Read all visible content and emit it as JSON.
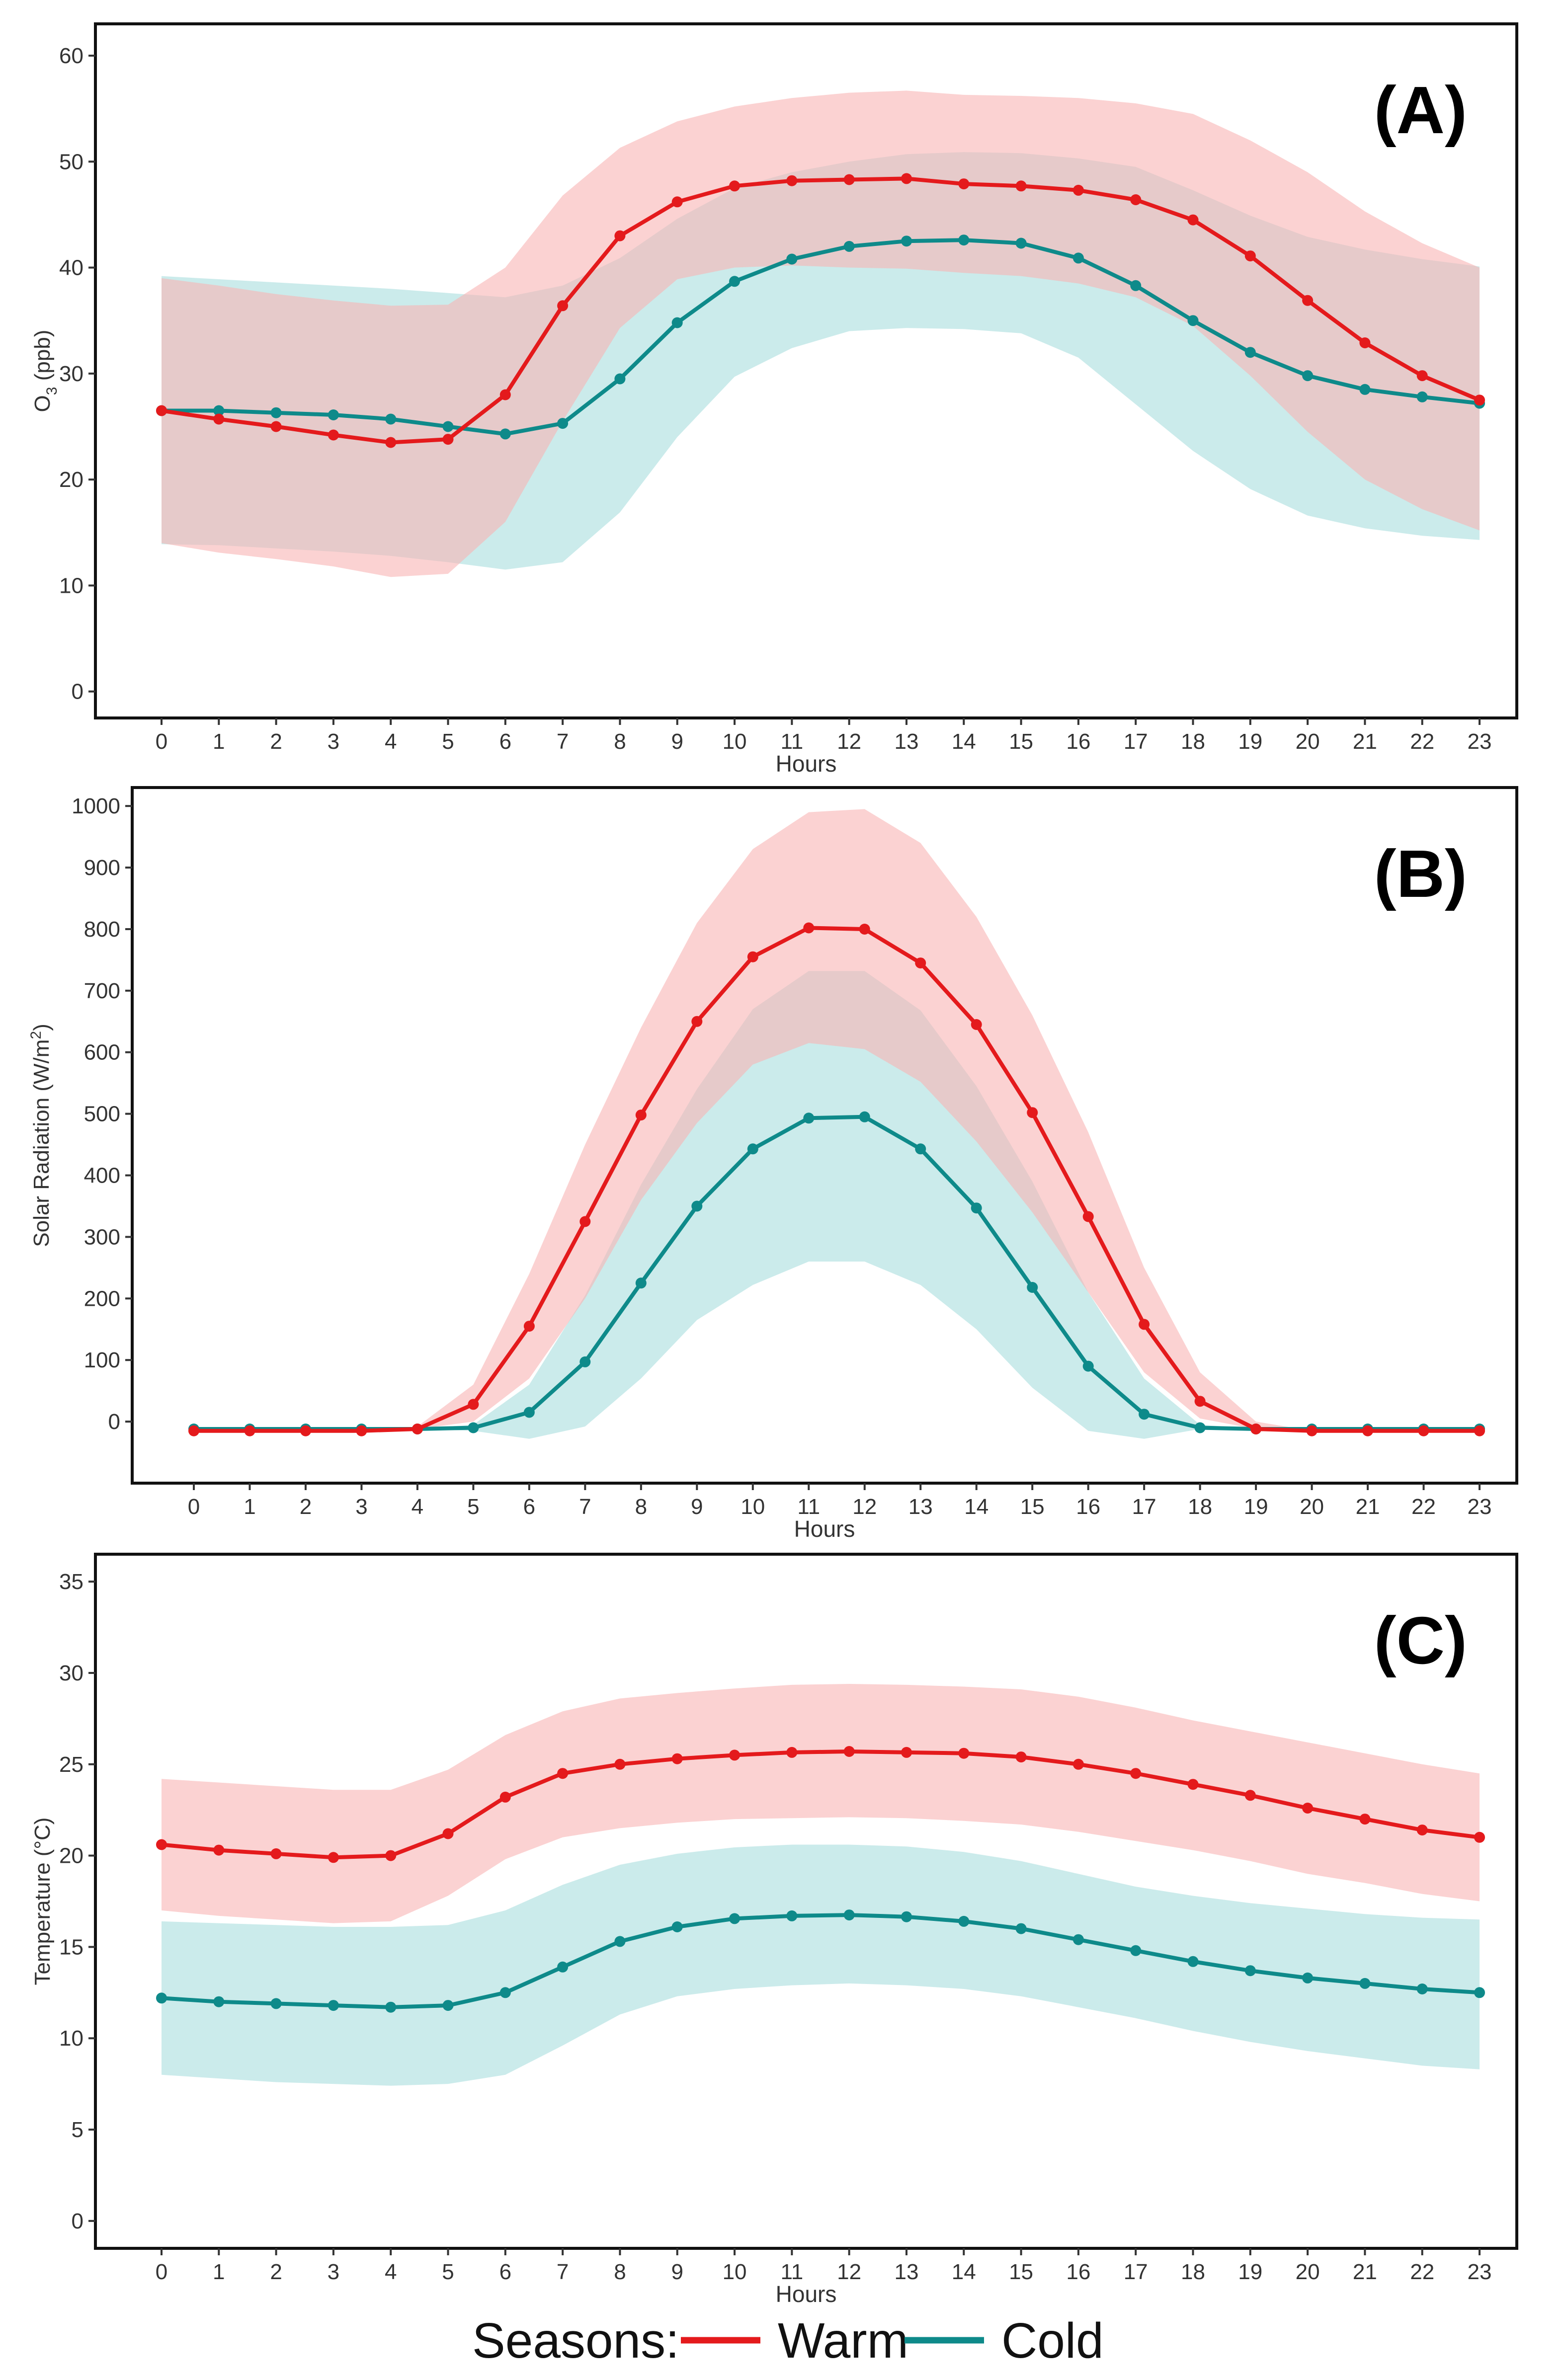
{
  "colors": {
    "warm": "#e41a1c",
    "cold": "#0e8a8a",
    "warm_band": "#f8b4b4",
    "cold_band": "#a8dede",
    "frame": "#111111",
    "text": "#333333"
  },
  "legend": {
    "title": "Seasons:",
    "items": [
      {
        "label": "Warm",
        "color": "#e41a1c"
      },
      {
        "label": "Cold",
        "color": "#0e8a8a"
      }
    ]
  },
  "chart_data": [
    {
      "type": "line",
      "panel_label": "(A)",
      "title": "",
      "xlabel": "Hours",
      "ylabel_main": "O",
      "ylabel_sub": "3",
      "ylabel_tail": " (ppb)",
      "x": [
        0,
        1,
        2,
        3,
        4,
        5,
        6,
        7,
        8,
        9,
        10,
        11,
        12,
        13,
        14,
        15,
        16,
        17,
        18,
        19,
        20,
        21,
        22,
        23
      ],
      "xticks": [
        "0",
        "1",
        "2",
        "3",
        "4",
        "5",
        "6",
        "7",
        "8",
        "9",
        "10",
        "11",
        "12",
        "13",
        "14",
        "15",
        "16",
        "17",
        "18",
        "19",
        "20",
        "21",
        "22",
        "23"
      ],
      "ylim": [
        -2.5,
        63
      ],
      "yticks": [
        0,
        10,
        20,
        30,
        40,
        50,
        60
      ],
      "ytick_labels": [
        "0",
        "10",
        "20",
        "30",
        "40",
        "50",
        "60"
      ],
      "series": [
        {
          "name": "Warm",
          "values": [
            26.5,
            25.7,
            25.0,
            24.2,
            23.5,
            23.8,
            28.0,
            36.4,
            43.0,
            46.2,
            47.7,
            48.2,
            48.3,
            48.4,
            47.9,
            47.7,
            47.3,
            46.4,
            44.5,
            41.1,
            36.9,
            32.9,
            29.8,
            27.5
          ],
          "lower": [
            14.0,
            13.1,
            12.5,
            11.8,
            10.8,
            11.1,
            16.0,
            25.5,
            34.3,
            38.9,
            40.0,
            40.2,
            40.0,
            39.9,
            39.5,
            39.2,
            38.5,
            37.2,
            34.5,
            29.8,
            24.5,
            20.0,
            17.2,
            15.2
          ],
          "upper": [
            39.0,
            38.3,
            37.5,
            36.9,
            36.4,
            36.5,
            40.0,
            46.8,
            51.3,
            53.8,
            55.2,
            56.0,
            56.5,
            56.7,
            56.3,
            56.2,
            56.0,
            55.5,
            54.5,
            52.0,
            49.0,
            45.3,
            42.3,
            40.0
          ]
        },
        {
          "name": "Cold",
          "values": [
            26.5,
            26.5,
            26.3,
            26.1,
            25.7,
            25.0,
            24.3,
            25.3,
            29.5,
            34.8,
            38.7,
            40.8,
            42.0,
            42.5,
            42.6,
            42.3,
            40.9,
            38.3,
            35.0,
            32.0,
            29.8,
            28.5,
            27.8,
            27.2
          ],
          "lower": [
            13.9,
            13.8,
            13.5,
            13.2,
            12.8,
            12.2,
            11.5,
            12.2,
            16.9,
            24.0,
            29.7,
            32.4,
            34.0,
            34.3,
            34.2,
            33.8,
            31.5,
            27.1,
            22.7,
            19.1,
            16.6,
            15.4,
            14.7,
            14.3
          ],
          "upper": [
            39.2,
            38.9,
            38.6,
            38.3,
            38.0,
            37.6,
            37.2,
            38.3,
            40.9,
            44.6,
            47.5,
            49.0,
            50.0,
            50.7,
            50.9,
            50.8,
            50.3,
            49.5,
            47.3,
            44.9,
            42.9,
            41.7,
            40.8,
            40.1
          ]
        }
      ]
    },
    {
      "type": "line",
      "panel_label": "(B)",
      "title": "",
      "xlabel": "Hours",
      "ylabel_main": "Solar Radiation (W/m",
      "ylabel_sub": "2",
      "ylabel_tail": ")",
      "x": [
        0,
        1,
        2,
        3,
        4,
        5,
        6,
        7,
        8,
        9,
        10,
        11,
        12,
        13,
        14,
        15,
        16,
        17,
        18,
        19,
        20,
        21,
        22,
        23
      ],
      "xticks": [
        "0",
        "1",
        "2",
        "3",
        "4",
        "5",
        "6",
        "7",
        "8",
        "9",
        "10",
        "11",
        "12",
        "13",
        "14",
        "15",
        "16",
        "17",
        "18",
        "19",
        "20",
        "21",
        "22",
        "23"
      ],
      "ylim": [
        -100,
        1030
      ],
      "yticks": [
        0,
        100,
        200,
        300,
        400,
        500,
        600,
        700,
        800,
        900,
        1000
      ],
      "ytick_labels": [
        "0",
        "100",
        "200",
        "300",
        "400",
        "500",
        "600",
        "700",
        "800",
        "900",
        "1000"
      ],
      "series": [
        {
          "name": "Warm",
          "values": [
            -15,
            -15,
            -15,
            -15,
            -12,
            28,
            155,
            325,
            498,
            650,
            755,
            802,
            800,
            745,
            645,
            502,
            333,
            158,
            33,
            -12,
            -15,
            -15,
            -15,
            -15
          ],
          "lower": [
            -15,
            -15,
            -15,
            -15,
            -12,
            0,
            70,
            200,
            360,
            485,
            580,
            615,
            605,
            552,
            455,
            340,
            210,
            80,
            5,
            -12,
            -15,
            -15,
            -15,
            -15
          ],
          "upper": [
            -15,
            -15,
            -15,
            -15,
            -8,
            60,
            240,
            450,
            640,
            810,
            930,
            990,
            995,
            940,
            820,
            660,
            470,
            250,
            80,
            0,
            -15,
            -15,
            -15,
            -15
          ]
        },
        {
          "name": "Cold",
          "values": [
            -12,
            -12,
            -12,
            -12,
            -12,
            -10,
            15,
            97,
            225,
            350,
            443,
            493,
            495,
            443,
            347,
            218,
            90,
            12,
            -10,
            -12,
            -12,
            -12,
            -12,
            -12
          ],
          "lower": [
            -12,
            -12,
            -12,
            -12,
            -12,
            -15,
            -28,
            -8,
            70,
            165,
            222,
            260,
            260,
            222,
            150,
            55,
            -15,
            -28,
            -12,
            -12,
            -12,
            -12,
            -12,
            -12
          ],
          "upper": [
            -12,
            -12,
            -12,
            -12,
            -12,
            -5,
            60,
            205,
            385,
            540,
            670,
            732,
            732,
            668,
            545,
            390,
            210,
            70,
            -5,
            -12,
            -12,
            -12,
            -12,
            -12
          ]
        }
      ]
    },
    {
      "type": "line",
      "panel_label": "(C)",
      "title": "",
      "xlabel": "Hours",
      "ylabel_main": "Temperature (°C)",
      "ylabel_sub": "",
      "ylabel_tail": "",
      "x": [
        0,
        1,
        2,
        3,
        4,
        5,
        6,
        7,
        8,
        9,
        10,
        11,
        12,
        13,
        14,
        15,
        16,
        17,
        18,
        19,
        20,
        21,
        22,
        23
      ],
      "xticks": [
        "0",
        "1",
        "2",
        "3",
        "4",
        "5",
        "6",
        "7",
        "8",
        "9",
        "10",
        "11",
        "12",
        "13",
        "14",
        "15",
        "16",
        "17",
        "18",
        "19",
        "20",
        "21",
        "22",
        "23"
      ],
      "ylim": [
        -1.5,
        36.5
      ],
      "yticks": [
        0,
        5,
        10,
        15,
        20,
        25,
        30,
        35
      ],
      "ytick_labels": [
        "0",
        "5",
        "10",
        "15",
        "20",
        "25",
        "30",
        "35"
      ],
      "series": [
        {
          "name": "Warm",
          "values": [
            20.6,
            20.3,
            20.1,
            19.9,
            20.0,
            21.2,
            23.2,
            24.5,
            25.0,
            25.3,
            25.5,
            25.65,
            25.7,
            25.65,
            25.6,
            25.4,
            25.0,
            24.5,
            23.9,
            23.3,
            22.6,
            22.0,
            21.4,
            21.0
          ],
          "lower": [
            17.0,
            16.7,
            16.5,
            16.3,
            16.4,
            17.8,
            19.8,
            21.0,
            21.5,
            21.8,
            22.0,
            22.05,
            22.1,
            22.05,
            21.9,
            21.7,
            21.3,
            20.8,
            20.3,
            19.7,
            19.0,
            18.5,
            17.9,
            17.5
          ],
          "upper": [
            24.2,
            24.0,
            23.8,
            23.6,
            23.6,
            24.7,
            26.6,
            27.9,
            28.6,
            28.9,
            29.15,
            29.35,
            29.4,
            29.35,
            29.25,
            29.1,
            28.7,
            28.1,
            27.4,
            26.8,
            26.2,
            25.6,
            25.0,
            24.5
          ]
        },
        {
          "name": "Cold",
          "values": [
            12.2,
            12.0,
            11.9,
            11.8,
            11.7,
            11.8,
            12.5,
            13.9,
            15.3,
            16.1,
            16.55,
            16.7,
            16.75,
            16.65,
            16.4,
            16.0,
            15.4,
            14.8,
            14.2,
            13.7,
            13.3,
            13.0,
            12.7,
            12.5
          ],
          "lower": [
            8.0,
            7.8,
            7.6,
            7.5,
            7.4,
            7.5,
            8.0,
            9.6,
            11.3,
            12.3,
            12.7,
            12.9,
            13.0,
            12.9,
            12.7,
            12.3,
            11.7,
            11.1,
            10.4,
            9.8,
            9.3,
            8.9,
            8.5,
            8.3
          ],
          "upper": [
            16.4,
            16.3,
            16.2,
            16.1,
            16.1,
            16.2,
            17.0,
            18.4,
            19.5,
            20.1,
            20.45,
            20.6,
            20.6,
            20.5,
            20.2,
            19.7,
            19.0,
            18.3,
            17.8,
            17.4,
            17.1,
            16.8,
            16.6,
            16.5
          ]
        }
      ]
    }
  ]
}
